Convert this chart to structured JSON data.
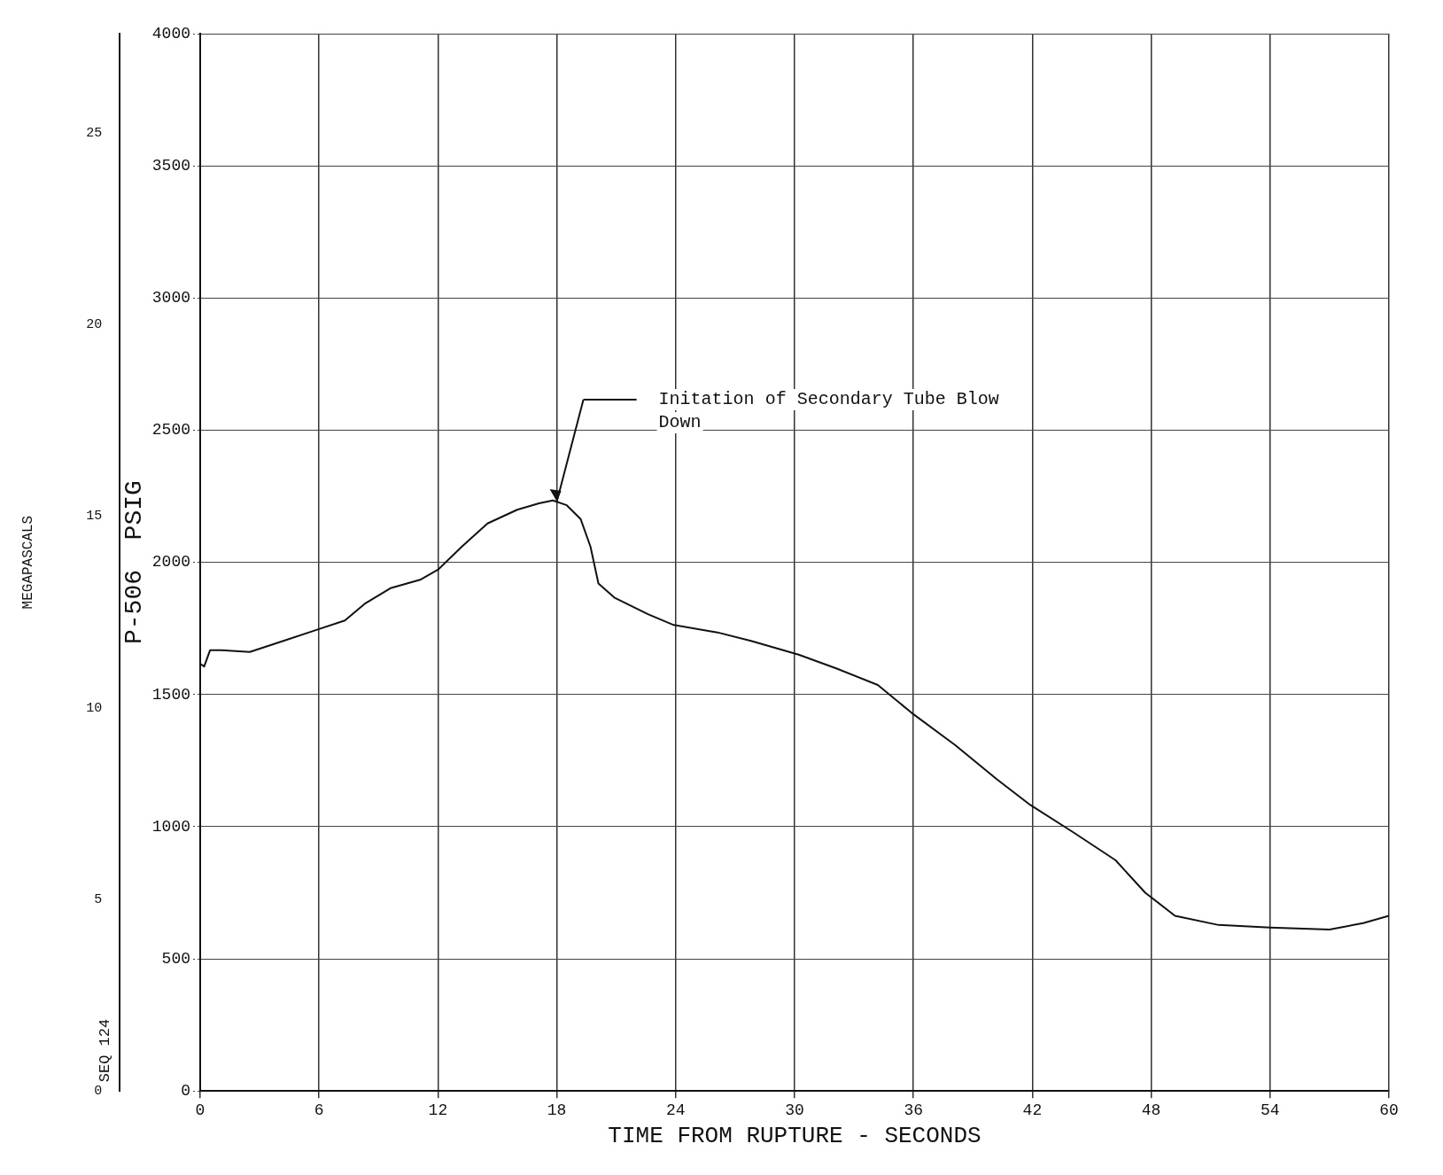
{
  "chart_data": {
    "type": "line",
    "xlabel": "TIME FROM RUPTURE - SECONDS",
    "ylabel": "P-506  PSIG",
    "y2label": "MEGAPASCALS",
    "x": [
      0,
      0.2,
      0.5,
      1,
      2.5,
      4.2,
      5.9,
      7.3,
      8.3,
      9.6,
      11.1,
      12,
      13.2,
      14.5,
      16,
      17.1,
      17.8,
      18.5,
      19.2,
      19.7,
      20.1,
      20.9,
      22.6,
      23.9,
      26.1,
      27.8,
      30.2,
      32.1,
      34.2,
      35.9,
      38.1,
      40.2,
      41.9,
      44.1,
      46.2,
      47.7,
      49.2,
      51.4,
      54,
      57,
      58.7,
      60
    ],
    "series": [
      {
        "color": "#111111",
        "values": [
          1616,
          1606,
          1668,
          1668,
          1661,
          1703,
          1745,
          1780,
          1843,
          1902,
          1934,
          1972,
          2059,
          2147,
          2199,
          2223,
          2234,
          2216,
          2164,
          2059,
          1920,
          1867,
          1804,
          1763,
          1735,
          1703,
          1651,
          1599,
          1536,
          1431,
          1309,
          1180,
          1082,
          977,
          873,
          750,
          663,
          628,
          618,
          611,
          635,
          663
        ]
      }
    ],
    "xlim": [
      0,
      60
    ],
    "xticks": [
      0,
      6,
      12,
      18,
      24,
      30,
      36,
      42,
      48,
      54,
      60
    ],
    "ylim": [
      0,
      4000
    ],
    "yticks": [
      0,
      500,
      1000,
      1500,
      2000,
      2500,
      3000,
      3500,
      4000
    ],
    "y2lim": [
      0,
      27.58
    ],
    "y2ticks": [
      0,
      5,
      10,
      15,
      20,
      25
    ],
    "annotations": [
      "Initation of Secondary Tube Blow Down",
      "SEQ 124"
    ],
    "grid": true,
    "legend": false,
    "marker": "none",
    "line_style": "solid"
  }
}
